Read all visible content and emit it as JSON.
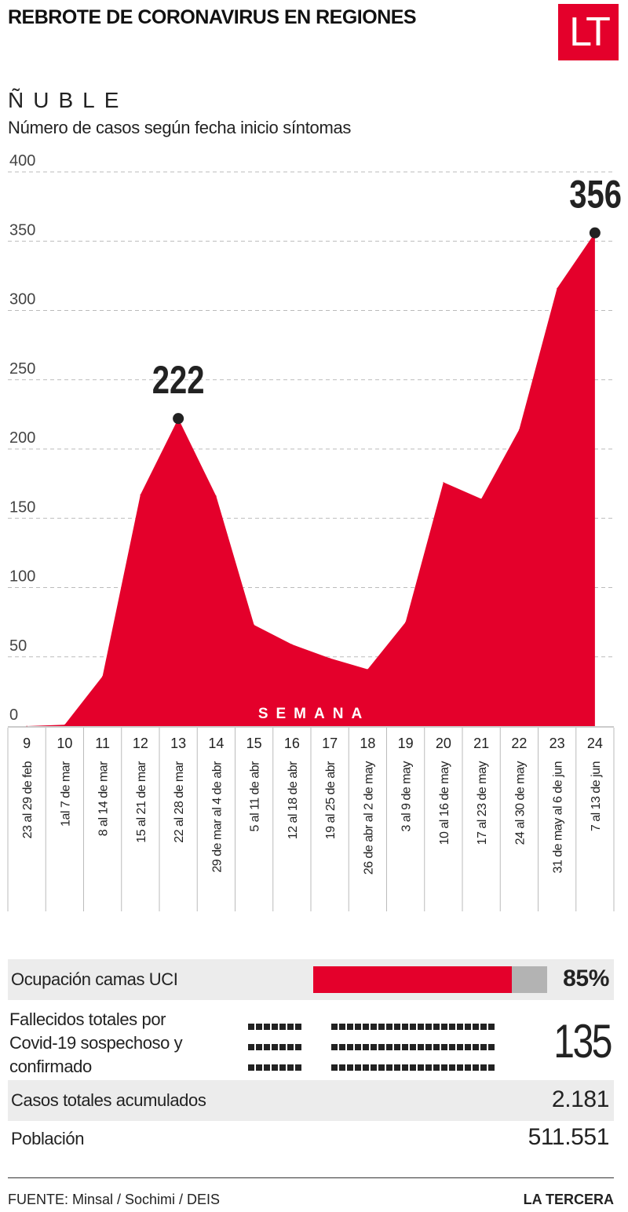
{
  "header": {
    "title": "REBROTE DE CORONAVIRUS EN REGIONES",
    "logo": "LT",
    "region": "ÑUBLE",
    "subtitle": "Número de casos según fecha inicio síntomas"
  },
  "chart_data": {
    "type": "area",
    "title": "Número de casos según fecha inicio síntomas",
    "xlabel": "SEMANA",
    "ylabel": "",
    "ylim": [
      0,
      400
    ],
    "yticks": [
      0,
      50,
      100,
      150,
      200,
      250,
      300,
      350,
      400
    ],
    "grid": true,
    "weeks": [
      "9",
      "10",
      "11",
      "12",
      "13",
      "14",
      "15",
      "16",
      "17",
      "18",
      "19",
      "20",
      "21",
      "22",
      "23",
      "24"
    ],
    "ranges": [
      "23 al 29 de feb",
      "1al 7 de mar",
      "8 al 14 de mar",
      "15 al 21 de mar",
      "22 al 28 de mar",
      "29 de mar al 4 de abr",
      "5 al 11 de abr",
      "12 al 18 de abr",
      "19 al 25 de abr",
      "26 de abr al 2 de may",
      "3 al 9 de may",
      "10 al 16 de may",
      "17 al 23 de may",
      "24 al 30 de may",
      "31 de may al 6 de jun",
      "7 al 13 de jun"
    ],
    "values": [
      0,
      1,
      36,
      167,
      222,
      166,
      73,
      59,
      49,
      41,
      75,
      176,
      164,
      214,
      316,
      356
    ],
    "annotations": [
      {
        "week": "13",
        "label": "222"
      },
      {
        "week": "24",
        "label": "356"
      }
    ],
    "color": "#e4002b"
  },
  "stats": {
    "uci_label": "Ocupación camas UCI",
    "uci_percent": 85,
    "uci_value": "85%",
    "deaths_label": "Fallecidos totales por Covid-19 sospechoso y confirmado",
    "deaths_value": "135",
    "deaths_count": 135,
    "cases_label": "Casos totales acumulados",
    "cases_value": "2.181",
    "population_label": "Población",
    "population_value": "511.551"
  },
  "footer": {
    "source": "FUENTE: Minsal / Sochimi / DEIS",
    "brand": "LA TERCERA"
  }
}
